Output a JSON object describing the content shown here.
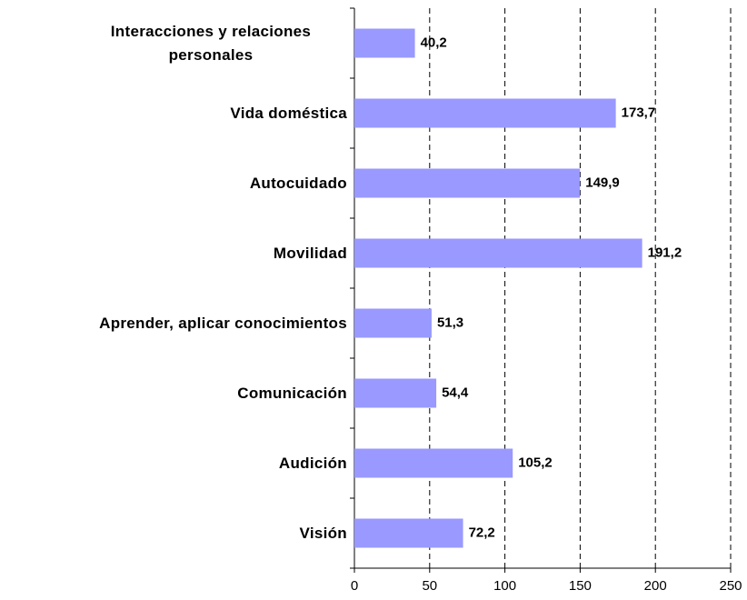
{
  "chart_data": {
    "type": "bar",
    "orientation": "horizontal",
    "categories": [
      "Interacciones y relaciones personales",
      "Vida doméstica",
      "Autocuidado",
      "Movilidad",
      "Aprender, aplicar conocimientos",
      "Comunicación",
      "Audición",
      "Visión"
    ],
    "values": [
      40.2,
      173.7,
      149.9,
      191.2,
      51.3,
      54.4,
      105.2,
      72.2
    ],
    "value_labels": [
      "40,2",
      "173,7",
      "149,9",
      "191,2",
      "51,3",
      "54,4",
      "105,2",
      "72,2"
    ],
    "color": "#9999ff",
    "xlim": [
      0,
      250
    ],
    "xticks": [
      0,
      50,
      100,
      150,
      200,
      250
    ],
    "grid": true
  }
}
